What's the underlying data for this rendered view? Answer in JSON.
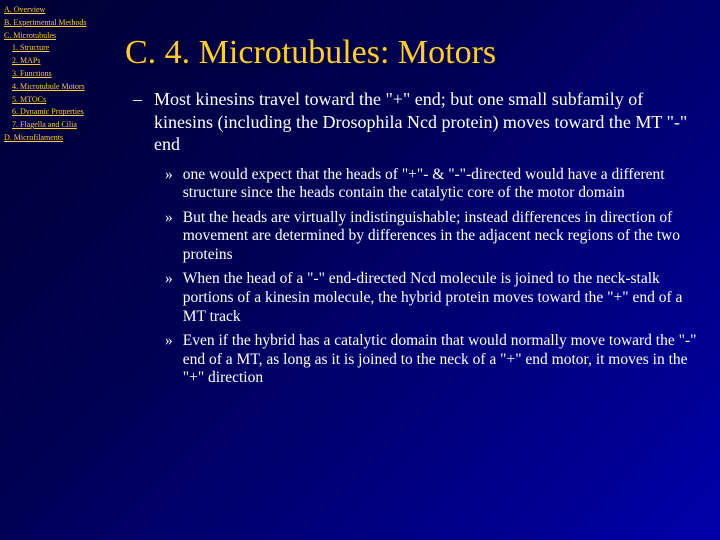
{
  "nav": {
    "items": [
      {
        "label": "A. Overview",
        "indent": 0
      },
      {
        "label": "B. Experimental Methods",
        "indent": 0
      },
      {
        "label": "C. Microtubules",
        "indent": 0
      },
      {
        "label": "1. Structure",
        "indent": 1
      },
      {
        "label": "2. MAPs",
        "indent": 1
      },
      {
        "label": "3. Functions",
        "indent": 1
      },
      {
        "label": "4. Microtubule Motors",
        "indent": 1
      },
      {
        "label": "5. MTOCs",
        "indent": 1
      },
      {
        "label": "6. Dynamic Properties",
        "indent": 1
      },
      {
        "label": "7. Flagella and Cilia",
        "indent": 1
      },
      {
        "label": "D. Microfilaments",
        "indent": 0
      }
    ]
  },
  "slide": {
    "title": "C. 4. Microtubules: Motors",
    "main_bullet": "Most kinesins travel toward the \"+\" end; but one small subfamily of kinesins (including the Drosophila Ncd protein) moves toward the MT \"-\" end",
    "sub_bullets": [
      "one would expect that the heads of \"+\"- & \"-\"-directed would have a different structure since the heads contain the catalytic core of the motor domain",
      "But the heads are virtually indistinguishable; instead differences in direction of movement are determined by differences in the adjacent neck regions of the two proteins",
      "When the head of a \"-\" end-directed Ncd molecule is joined to the neck-stalk portions of a kinesin molecule, the hybrid protein moves toward the \"+\" end of a MT track",
      "Even if the hybrid has a catalytic domain that would normally move toward the \"-\" end of a MT, as long as it is joined to the neck of a \"+\" end motor, it moves in the \"+\" direction"
    ]
  }
}
